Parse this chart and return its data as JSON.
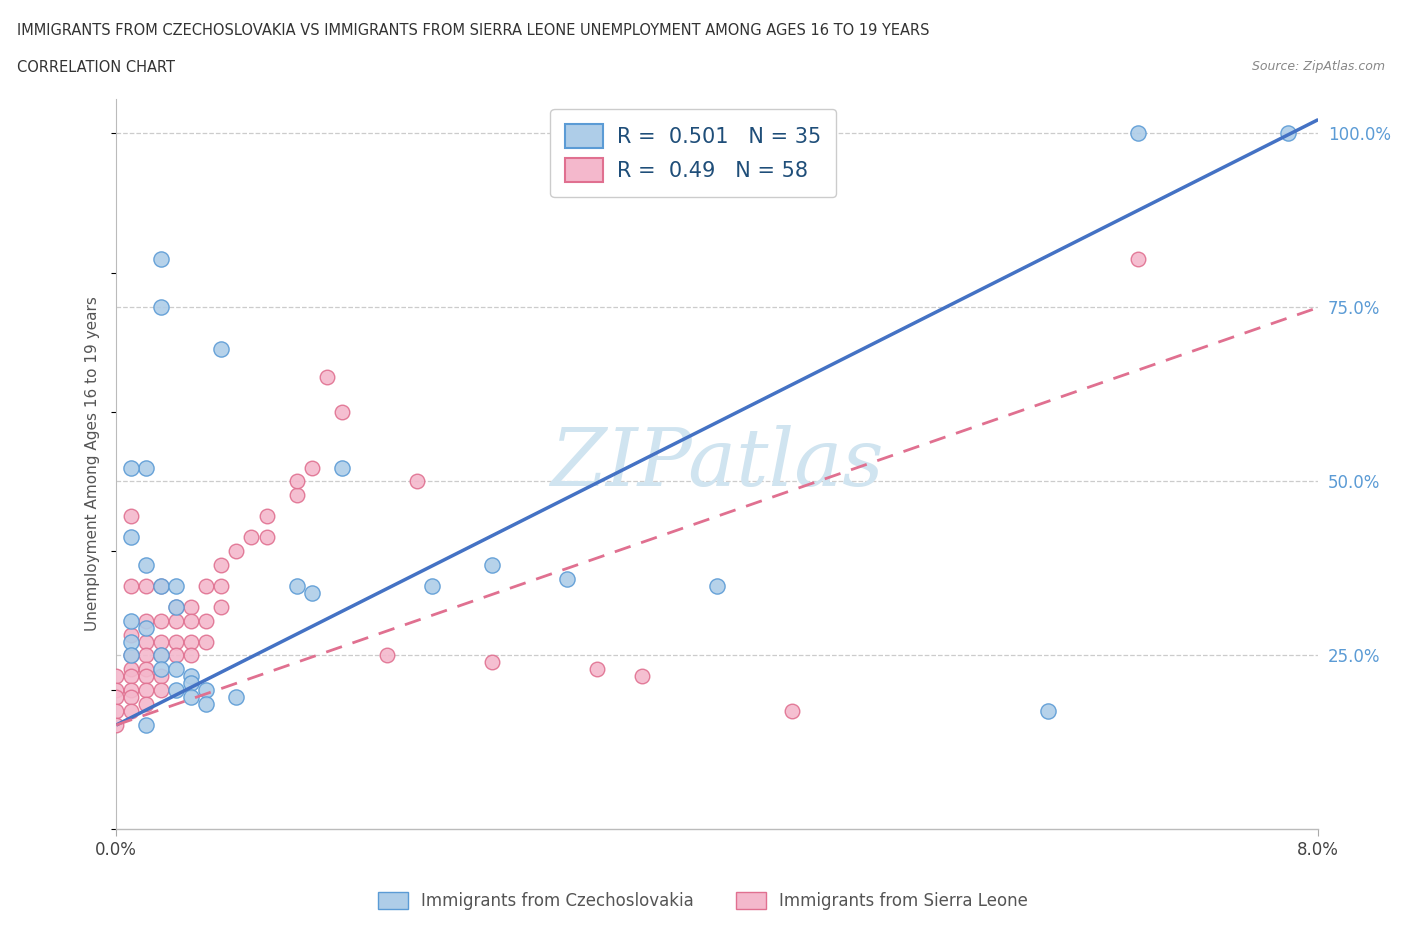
{
  "title_line1": "IMMIGRANTS FROM CZECHOSLOVAKIA VS IMMIGRANTS FROM SIERRA LEONE UNEMPLOYMENT AMONG AGES 16 TO 19 YEARS",
  "title_line2": "CORRELATION CHART",
  "source": "Source: ZipAtlas.com",
  "ylabel": "Unemployment Among Ages 16 to 19 years",
  "legend_czechoslovakia": "Immigrants from Czechoslovakia",
  "legend_sierra_leone": "Immigrants from Sierra Leone",
  "R_czechoslovakia": 0.501,
  "N_czechoslovakia": 35,
  "R_sierra_leone": 0.49,
  "N_sierra_leone": 58,
  "color_czechoslovakia_fill": "#AECDE8",
  "color_czechoslovakia_edge": "#5B9BD5",
  "color_sierra_leone_fill": "#F4B8CC",
  "color_sierra_leone_edge": "#E07090",
  "color_line_czechoslovakia": "#4472C4",
  "color_line_sierra_leone": "#E07090",
  "watermark_text": "ZIPatlas",
  "watermark_color": "#D0E4F0",
  "xmin": 0.0,
  "xmax": 0.08,
  "ymin": 0.0,
  "ymax": 1.05,
  "line_cz_x0": 0.0,
  "line_cz_y0": 0.15,
  "line_cz_x1": 0.08,
  "line_cz_y1": 1.02,
  "line_sl_x0": 0.0,
  "line_sl_y0": 0.15,
  "line_sl_x1": 0.08,
  "line_sl_y1": 0.75,
  "czechoslovakia_x": [
    0.003,
    0.003,
    0.007,
    0.002,
    0.001,
    0.001,
    0.002,
    0.003,
    0.004,
    0.004,
    0.001,
    0.002,
    0.001,
    0.001,
    0.003,
    0.003,
    0.004,
    0.005,
    0.005,
    0.004,
    0.006,
    0.005,
    0.008,
    0.012,
    0.013,
    0.015,
    0.021,
    0.025,
    0.03,
    0.04,
    0.062,
    0.068,
    0.078,
    0.002,
    0.006
  ],
  "czechoslovakia_y": [
    0.82,
    0.75,
    0.69,
    0.52,
    0.52,
    0.42,
    0.38,
    0.35,
    0.35,
    0.32,
    0.3,
    0.29,
    0.27,
    0.25,
    0.25,
    0.23,
    0.23,
    0.22,
    0.21,
    0.2,
    0.2,
    0.19,
    0.19,
    0.35,
    0.34,
    0.52,
    0.35,
    0.38,
    0.36,
    0.35,
    0.17,
    1.0,
    1.0,
    0.15,
    0.18
  ],
  "sierra_leone_x": [
    0.0,
    0.0,
    0.0,
    0.0,
    0.0,
    0.001,
    0.001,
    0.001,
    0.001,
    0.001,
    0.001,
    0.001,
    0.001,
    0.001,
    0.002,
    0.002,
    0.002,
    0.002,
    0.002,
    0.002,
    0.002,
    0.002,
    0.003,
    0.003,
    0.003,
    0.003,
    0.003,
    0.003,
    0.004,
    0.004,
    0.004,
    0.004,
    0.005,
    0.005,
    0.005,
    0.005,
    0.006,
    0.006,
    0.006,
    0.007,
    0.007,
    0.007,
    0.008,
    0.009,
    0.01,
    0.01,
    0.012,
    0.012,
    0.013,
    0.014,
    0.015,
    0.018,
    0.02,
    0.025,
    0.032,
    0.035,
    0.045,
    0.068
  ],
  "sierra_leone_y": [
    0.22,
    0.2,
    0.19,
    0.17,
    0.15,
    0.45,
    0.35,
    0.28,
    0.25,
    0.23,
    0.22,
    0.2,
    0.19,
    0.17,
    0.35,
    0.3,
    0.27,
    0.25,
    0.23,
    0.22,
    0.2,
    0.18,
    0.35,
    0.3,
    0.27,
    0.25,
    0.22,
    0.2,
    0.32,
    0.3,
    0.27,
    0.25,
    0.32,
    0.3,
    0.27,
    0.25,
    0.35,
    0.3,
    0.27,
    0.38,
    0.35,
    0.32,
    0.4,
    0.42,
    0.45,
    0.42,
    0.48,
    0.5,
    0.52,
    0.65,
    0.6,
    0.25,
    0.5,
    0.24,
    0.23,
    0.22,
    0.17,
    0.82
  ]
}
